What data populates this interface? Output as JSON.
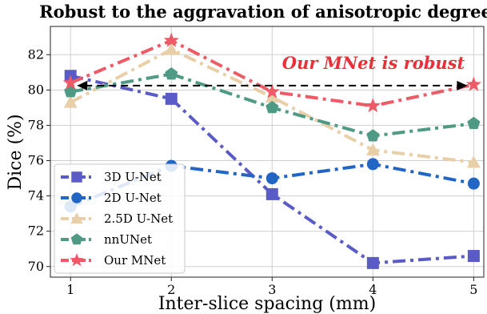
{
  "chart_data": {
    "type": "line",
    "title": "Robust to the aggravation of anisotropic degree",
    "xlabel": "Inter-slice spacing (mm)",
    "ylabel": "Dice (%)",
    "x": [
      1,
      2,
      3,
      4,
      5
    ],
    "xlim": [
      0.8,
      5.1
    ],
    "ylim": [
      69.4,
      83.6
    ],
    "xticks": [
      "1",
      "2",
      "3",
      "4",
      "5"
    ],
    "yticks": [
      "70",
      "72",
      "74",
      "76",
      "78",
      "80",
      "82"
    ],
    "grid": true,
    "legend_position": "lower-left",
    "annotation": "Our MNet is robust",
    "series": [
      {
        "name": "3D U-Net",
        "values": [
          80.8,
          79.5,
          74.1,
          70.2,
          70.6
        ],
        "color": "#5b5bc8",
        "marker": "square",
        "dash": "dashdot"
      },
      {
        "name": "2D U-Net",
        "values": [
          73.4,
          75.7,
          75.0,
          75.8,
          74.7
        ],
        "color": "#2166c4",
        "marker": "circle",
        "dash": "dashdot"
      },
      {
        "name": "2.5D U-Net",
        "values": [
          79.3,
          82.3,
          79.6,
          76.6,
          75.9
        ],
        "color": "#e8cfa8",
        "marker": "triangle",
        "dash": "dashdot"
      },
      {
        "name": "nnUNet",
        "values": [
          79.9,
          80.9,
          79.0,
          77.4,
          78.1
        ],
        "color": "#4f9a84",
        "marker": "pentagon",
        "dash": "dashdot"
      },
      {
        "name": "Our MNet",
        "values": [
          80.4,
          82.8,
          79.9,
          79.1,
          80.3
        ],
        "color": "#ec5b66",
        "marker": "star",
        "dash": "dashdot"
      }
    ]
  }
}
